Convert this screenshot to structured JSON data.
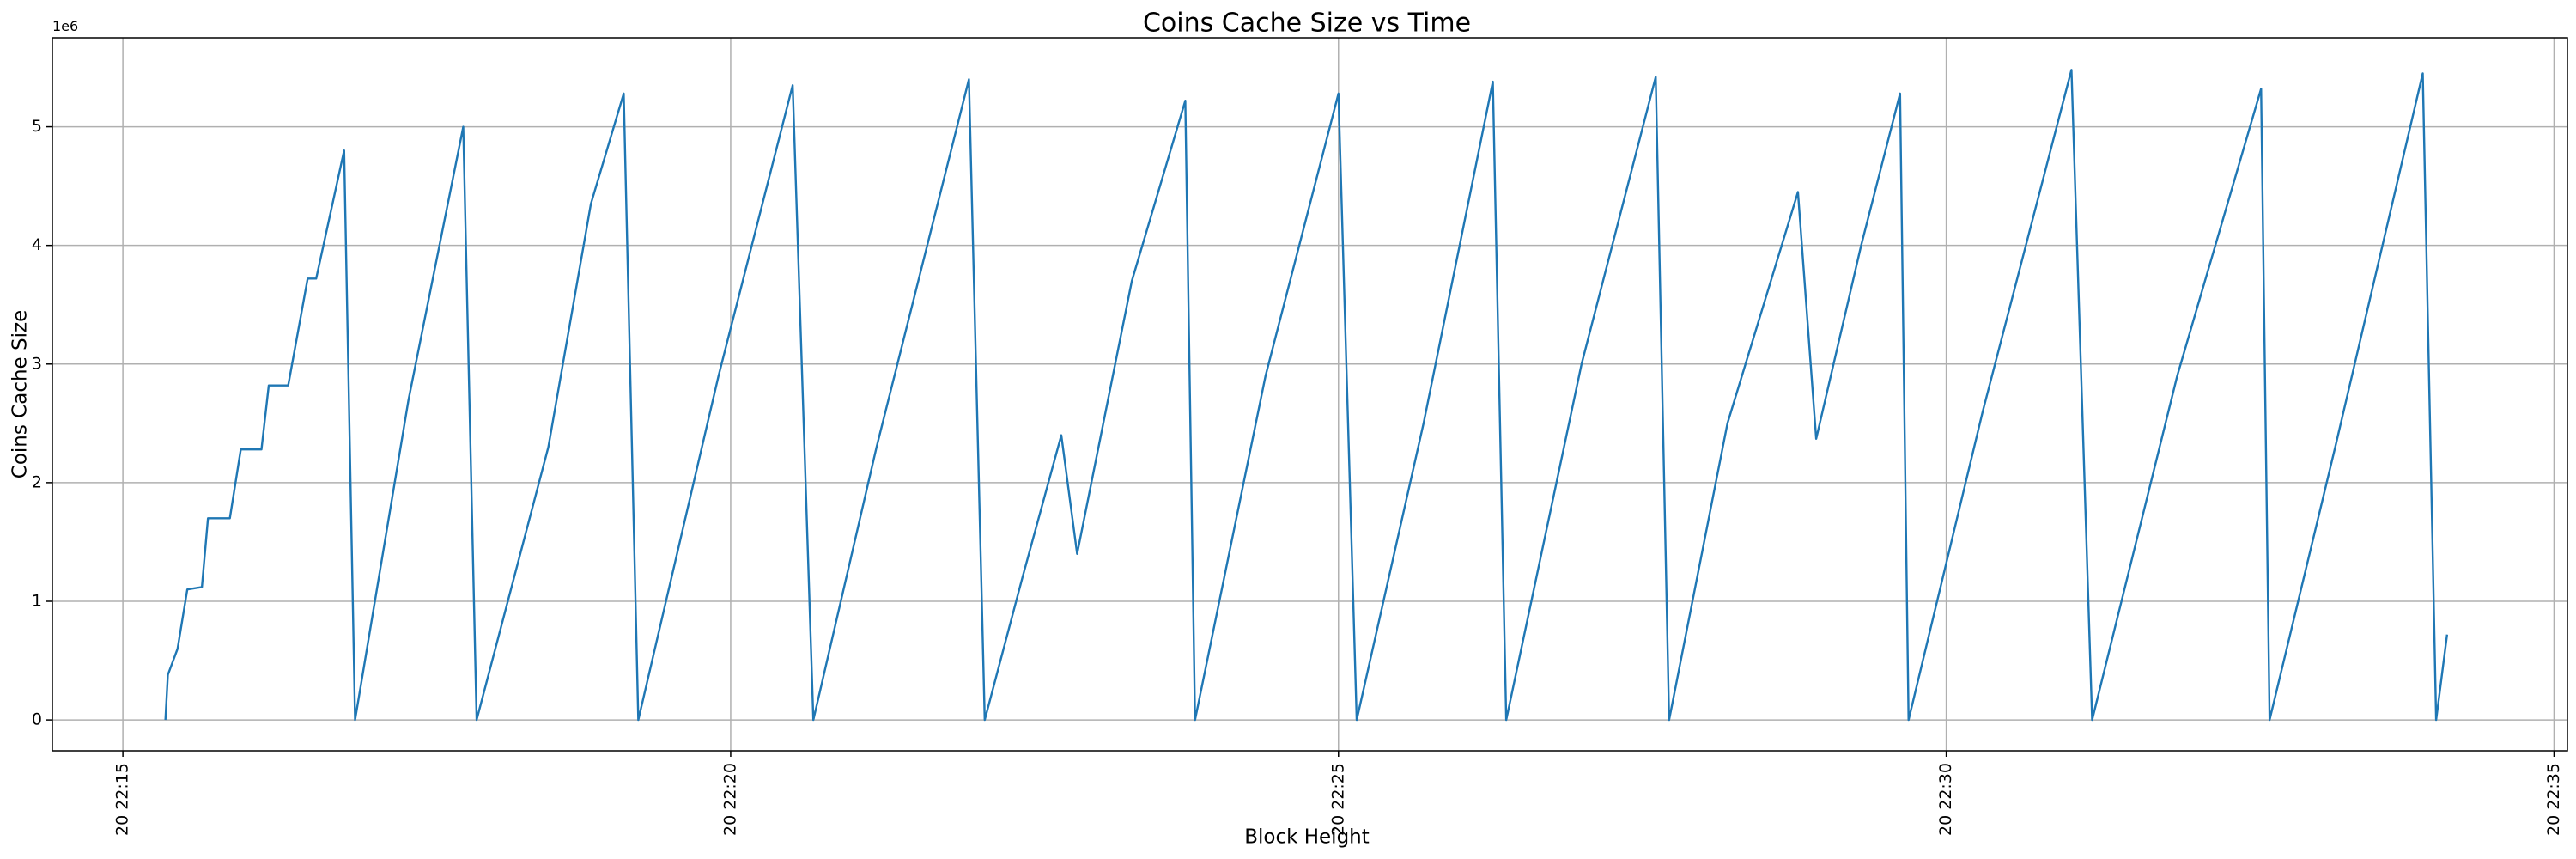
{
  "chart_data": {
    "type": "line",
    "title": "Coins Cache Size vs Time",
    "xlabel": "Block Height",
    "ylabel": "Coins Cache Size",
    "y_offset_label": "1e6",
    "grid": true,
    "xlim": [
      14.42,
      35.11
    ],
    "xticks": [
      {
        "value": 15,
        "label": "20 22:15"
      },
      {
        "value": 20,
        "label": "20 22:20"
      },
      {
        "value": 25,
        "label": "20 22:25"
      },
      {
        "value": 30,
        "label": "20 22:30"
      },
      {
        "value": 35,
        "label": "20 22:35"
      }
    ],
    "ylim": [
      -0.26,
      5.75
    ],
    "yticks": [
      0,
      1,
      2,
      3,
      4,
      5
    ],
    "x": [
      15.35,
      15.37,
      15.45,
      15.53,
      15.65,
      15.7,
      15.88,
      15.97,
      16.14,
      16.2,
      16.36,
      16.52,
      16.59,
      16.82,
      16.91,
      17.35,
      17.8,
      17.91,
      18.5,
      18.85,
      19.12,
      19.24,
      19.9,
      20.51,
      20.68,
      21.2,
      21.96,
      22.09,
      22.4,
      22.72,
      22.85,
      23.3,
      23.74,
      23.82,
      24.4,
      25.0,
      25.15,
      25.7,
      26.27,
      26.38,
      27.0,
      27.61,
      27.72,
      28.2,
      28.78,
      28.93,
      29.3,
      29.62,
      29.69,
      30.3,
      31.03,
      31.2,
      31.9,
      32.59,
      32.66,
      33.2,
      33.92,
      34.03,
      34.12
    ],
    "series": [
      {
        "name": "Coins Cache Size",
        "color": "#1f77b4",
        "values": [
          0,
          0.38,
          0.6,
          1.1,
          1.12,
          1.7,
          1.7,
          2.28,
          2.28,
          2.82,
          2.82,
          3.72,
          3.72,
          4.8,
          0,
          2.7,
          5.0,
          0,
          2.3,
          4.35,
          5.28,
          0,
          2.9,
          5.35,
          0,
          2.3,
          5.4,
          0,
          1.2,
          2.4,
          1.4,
          3.7,
          5.22,
          0,
          2.9,
          5.28,
          0,
          2.5,
          5.38,
          0,
          3.0,
          5.42,
          0,
          2.5,
          4.45,
          2.37,
          4.0,
          5.28,
          0,
          2.6,
          5.48,
          0,
          2.9,
          5.32,
          0,
          2.3,
          5.45,
          0,
          0.72
        ]
      }
    ]
  }
}
